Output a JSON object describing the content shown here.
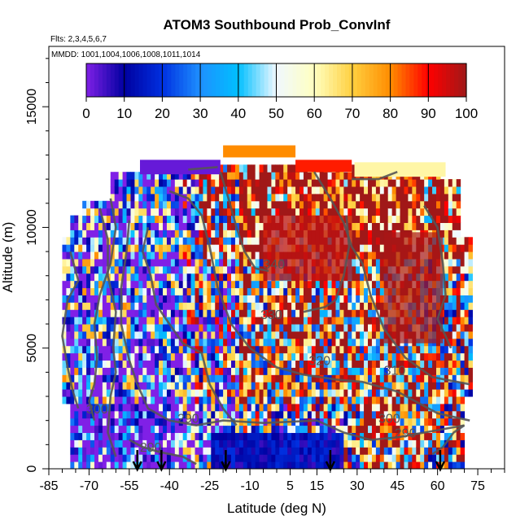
{
  "chart_data": {
    "type": "heatmap",
    "title": "ATOM3 Southbound Prob_ConvInf",
    "subtitle_flights": "Flts: 2,3,4,5,6,7",
    "subtitle_dates": "MMDD: 1001,1004,1006,1008,1011,1014",
    "xlabel": "Latitude (deg N)",
    "ylabel": "Altitude (m)",
    "xlim": [
      -85,
      85
    ],
    "ylim": [
      0,
      17500
    ],
    "x_tick_values": [
      -85,
      -70,
      -55,
      -40,
      -25,
      -10,
      5,
      15,
      30,
      45,
      60,
      75
    ],
    "x_tick_labels": [
      "-85",
      "-70",
      "-55",
      "-40",
      "-25",
      "-10",
      "5",
      "15",
      "30",
      "45",
      "60",
      "75"
    ],
    "y_tick_values": [
      0,
      5000,
      10000,
      15000
    ],
    "y_tick_labels": [
      "0",
      "5000",
      "10000",
      "15000"
    ],
    "colorbar": {
      "range": [
        0,
        100
      ],
      "tick_values": [
        0,
        10,
        20,
        30,
        40,
        50,
        60,
        70,
        80,
        90,
        100
      ],
      "tick_labels": [
        "0",
        "10",
        "20",
        "30",
        "40",
        "50",
        "60",
        "70",
        "80",
        "90",
        "100"
      ],
      "colors": [
        "#8020e6",
        "#0000a0",
        "#0030e0",
        "#1e90ff",
        "#00bfff",
        "#f0f8ff",
        "#ffffc0",
        "#ffd040",
        "#ff8c00",
        "#ff0000",
        "#a01818"
      ]
    },
    "theta_contour_labels": [
      {
        "text": "340",
        "lat": -1,
        "alt": 8300
      },
      {
        "text": "330",
        "lat": -2,
        "alt": 6200
      },
      {
        "text": "320",
        "lat": 16,
        "alt": 4300
      },
      {
        "text": "310",
        "lat": 44,
        "alt": 3900
      },
      {
        "text": "300",
        "lat": -67,
        "alt": 2300
      },
      {
        "text": "300",
        "lat": 42,
        "alt": 1900
      },
      {
        "text": "290",
        "lat": -33,
        "alt": 1900
      },
      {
        "text": "290",
        "lat": 48,
        "alt": 1300
      },
      {
        "text": "290",
        "lat": -47,
        "alt": 700
      }
    ],
    "profile_markers_lat": [
      -52,
      -43,
      -19,
      20,
      61
    ],
    "colors": {
      "contour": "#555555",
      "marker": "#000000",
      "fill_cap": "#ff8c00"
    }
  }
}
